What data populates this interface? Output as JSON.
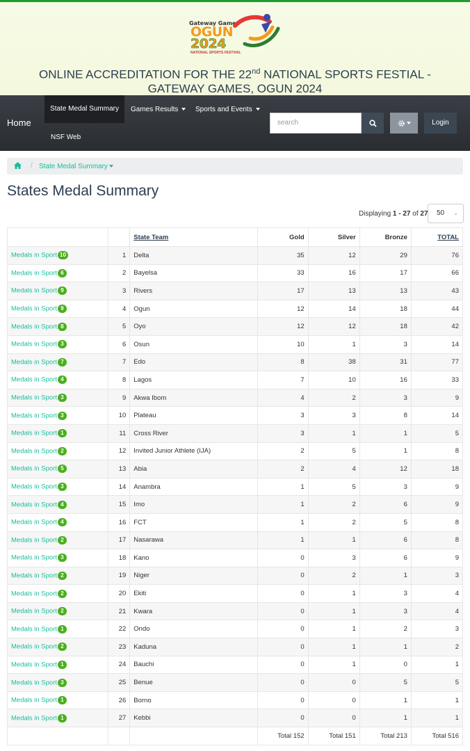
{
  "banner": {
    "logo": {
      "line1": "Gateway Games",
      "line2": "OGUN",
      "line3": "2024",
      "line4": "NATIONAL SPORTS FESTIVAL"
    },
    "title_part1": "ONLINE ACCREDITATION FOR THE 22",
    "title_sup": "nd",
    "title_part2": " NATIONAL SPORTS FESTIAL - GATEWAY GAMES, OGUN 2024"
  },
  "nav": {
    "home": "Home",
    "state_medal_summary": "State Medal Summary",
    "games_results": "Games Results",
    "sports_events": "Sports and Events",
    "nsf_web": "NSF Web",
    "search_placeholder": "search",
    "login": "Login"
  },
  "breadcrumb": {
    "current": "State Medal Summary"
  },
  "page_title": "States Medal Summary",
  "pagination": {
    "prefix": "Displaying ",
    "range": "1 - 27",
    "of": " of ",
    "total": "27",
    "page_size": "50"
  },
  "table": {
    "headers": {
      "state_team": "State Team",
      "gold": "Gold",
      "silver": "Silver",
      "bronze": "Bronze",
      "total": "TOTAL"
    },
    "link_label": "Medals in Sport",
    "rows": [
      {
        "sports": "10",
        "rank": "1",
        "state": "Delta",
        "gold": "35",
        "silver": "12",
        "bronze": "29",
        "total": "76"
      },
      {
        "sports": "6",
        "rank": "2",
        "state": "Bayelsa",
        "gold": "33",
        "silver": "16",
        "bronze": "17",
        "total": "66"
      },
      {
        "sports": "9",
        "rank": "3",
        "state": "Rivers",
        "gold": "17",
        "silver": "13",
        "bronze": "13",
        "total": "43"
      },
      {
        "sports": "9",
        "rank": "4",
        "state": "Ogun",
        "gold": "12",
        "silver": "14",
        "bronze": "18",
        "total": "44"
      },
      {
        "sports": "8",
        "rank": "5",
        "state": "Oyo",
        "gold": "12",
        "silver": "12",
        "bronze": "18",
        "total": "42"
      },
      {
        "sports": "3",
        "rank": "6",
        "state": "Osun",
        "gold": "10",
        "silver": "1",
        "bronze": "3",
        "total": "14"
      },
      {
        "sports": "7",
        "rank": "7",
        "state": "Edo",
        "gold": "8",
        "silver": "38",
        "bronze": "31",
        "total": "77"
      },
      {
        "sports": "4",
        "rank": "8",
        "state": "Lagos",
        "gold": "7",
        "silver": "10",
        "bronze": "16",
        "total": "33"
      },
      {
        "sports": "3",
        "rank": "9",
        "state": "Akwa Ibom",
        "gold": "4",
        "silver": "2",
        "bronze": "3",
        "total": "9"
      },
      {
        "sports": "3",
        "rank": "10",
        "state": "Plateau",
        "gold": "3",
        "silver": "3",
        "bronze": "8",
        "total": "14"
      },
      {
        "sports": "1",
        "rank": "11",
        "state": "Cross River",
        "gold": "3",
        "silver": "1",
        "bronze": "1",
        "total": "5"
      },
      {
        "sports": "2",
        "rank": "12",
        "state": "Invited Junior Athlete (IJA)",
        "gold": "2",
        "silver": "5",
        "bronze": "1",
        "total": "8"
      },
      {
        "sports": "5",
        "rank": "13",
        "state": "Abia",
        "gold": "2",
        "silver": "4",
        "bronze": "12",
        "total": "18"
      },
      {
        "sports": "3",
        "rank": "14",
        "state": "Anambra",
        "gold": "1",
        "silver": "5",
        "bronze": "3",
        "total": "9"
      },
      {
        "sports": "4",
        "rank": "15",
        "state": "Imo",
        "gold": "1",
        "silver": "2",
        "bronze": "6",
        "total": "9"
      },
      {
        "sports": "4",
        "rank": "16",
        "state": "FCT",
        "gold": "1",
        "silver": "2",
        "bronze": "5",
        "total": "8"
      },
      {
        "sports": "2",
        "rank": "17",
        "state": "Nasarawa",
        "gold": "1",
        "silver": "1",
        "bronze": "6",
        "total": "8"
      },
      {
        "sports": "3",
        "rank": "18",
        "state": "Kano",
        "gold": "0",
        "silver": "3",
        "bronze": "6",
        "total": "9"
      },
      {
        "sports": "2",
        "rank": "19",
        "state": "Niger",
        "gold": "0",
        "silver": "2",
        "bronze": "1",
        "total": "3"
      },
      {
        "sports": "2",
        "rank": "20",
        "state": "Ekiti",
        "gold": "0",
        "silver": "1",
        "bronze": "3",
        "total": "4"
      },
      {
        "sports": "2",
        "rank": "21",
        "state": "Kwara",
        "gold": "0",
        "silver": "1",
        "bronze": "3",
        "total": "4"
      },
      {
        "sports": "1",
        "rank": "22",
        "state": "Ondo",
        "gold": "0",
        "silver": "1",
        "bronze": "2",
        "total": "3"
      },
      {
        "sports": "2",
        "rank": "23",
        "state": "Kaduna",
        "gold": "0",
        "silver": "1",
        "bronze": "1",
        "total": "2"
      },
      {
        "sports": "1",
        "rank": "24",
        "state": "Bauchi",
        "gold": "0",
        "silver": "1",
        "bronze": "0",
        "total": "1"
      },
      {
        "sports": "3",
        "rank": "25",
        "state": "Benue",
        "gold": "0",
        "silver": "0",
        "bronze": "5",
        "total": "5"
      },
      {
        "sports": "1",
        "rank": "26",
        "state": "Borno",
        "gold": "0",
        "silver": "0",
        "bronze": "1",
        "total": "1"
      },
      {
        "sports": "1",
        "rank": "27",
        "state": "Kebbi",
        "gold": "0",
        "silver": "0",
        "bronze": "1",
        "total": "1"
      }
    ],
    "footer": {
      "gold": "Total 152",
      "silver": "Total 151",
      "bronze": "Total 213",
      "total": "Total 516"
    }
  },
  "colors": {
    "accent": "#18bc9c",
    "badge": "#4caf1f",
    "navbar": "#2c3037",
    "title": "#2c3e50"
  }
}
